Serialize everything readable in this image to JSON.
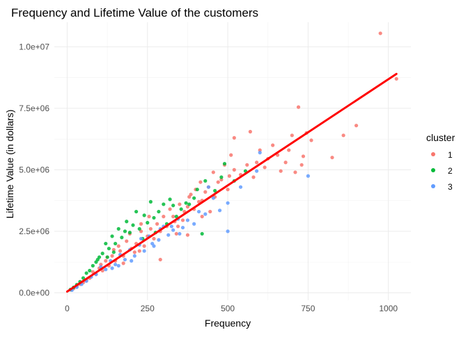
{
  "chart_data": {
    "type": "scatter",
    "title": "Frequency and Lifetime Value of the customers",
    "xlabel": "Frequency",
    "ylabel": "Lifetime Value (in dollars)",
    "xlim": [
      -40,
      1070
    ],
    "ylim": [
      -300000,
      11000000
    ],
    "x_ticks": [
      0,
      250,
      500,
      750,
      1000
    ],
    "x_tick_labels": [
      "0",
      "250",
      "500",
      "750",
      "1000"
    ],
    "y_ticks": [
      0,
      2500000,
      5000000,
      7500000,
      10000000
    ],
    "y_tick_labels": [
      "0.0e+00",
      "2.5e+06",
      "5.0e+06",
      "7.5e+06",
      "1.0e+07"
    ],
    "grid": true,
    "legend": {
      "title": "cluster",
      "placement": "right"
    },
    "colors": {
      "1": "#F8766D",
      "2": "#00BA38",
      "3": "#619CFF",
      "fit_line": "#FF0000"
    },
    "series": [
      {
        "name": "1",
        "color": "#F8766D",
        "points": [
          [
            975,
            10550000
          ],
          [
            1025,
            8700000
          ],
          [
            900,
            6800000
          ],
          [
            860,
            6400000
          ],
          [
            825,
            5500000
          ],
          [
            720,
            7550000
          ],
          [
            745,
            6500000
          ],
          [
            700,
            6400000
          ],
          [
            760,
            6200000
          ],
          [
            690,
            5800000
          ],
          [
            640,
            6000000
          ],
          [
            655,
            5600000
          ],
          [
            625,
            5450000
          ],
          [
            600,
            5800000
          ],
          [
            615,
            5100000
          ],
          [
            680,
            5300000
          ],
          [
            730,
            5200000
          ],
          [
            710,
            4900000
          ],
          [
            665,
            4950000
          ],
          [
            735,
            5550000
          ],
          [
            570,
            6550000
          ],
          [
            590,
            5300000
          ],
          [
            520,
            6300000
          ],
          [
            510,
            5600000
          ],
          [
            560,
            5200000
          ],
          [
            580,
            4700000
          ],
          [
            540,
            4800000
          ],
          [
            490,
            5200000
          ],
          [
            470,
            4500000
          ],
          [
            500,
            4200000
          ],
          [
            455,
            4900000
          ],
          [
            430,
            4100000
          ],
          [
            410,
            3700000
          ],
          [
            380,
            3900000
          ],
          [
            365,
            3300000
          ],
          [
            350,
            3600000
          ],
          [
            335,
            2900000
          ],
          [
            320,
            3400000
          ],
          [
            300,
            3100000
          ],
          [
            290,
            2500000
          ],
          [
            280,
            2800000
          ],
          [
            270,
            2200000
          ],
          [
            260,
            2600000
          ],
          [
            250,
            2300000
          ],
          [
            240,
            1900000
          ],
          [
            230,
            2500000
          ],
          [
            215,
            2000000
          ],
          [
            200,
            1800000
          ],
          [
            185,
            2100000
          ],
          [
            175,
            1500000
          ],
          [
            165,
            1700000
          ],
          [
            150,
            1300000
          ],
          [
            140,
            1500000
          ],
          [
            130,
            1100000
          ],
          [
            120,
            1300000
          ],
          [
            110,
            900000
          ],
          [
            100,
            1000000
          ],
          [
            90,
            750000
          ],
          [
            80,
            850000
          ],
          [
            70,
            600000
          ],
          [
            60,
            500000
          ],
          [
            50,
            420000
          ],
          [
            40,
            350000
          ],
          [
            30,
            260000
          ],
          [
            20,
            180000
          ],
          [
            12,
            120000
          ],
          [
            310,
            2700000
          ],
          [
            330,
            3100000
          ],
          [
            345,
            2700000
          ],
          [
            360,
            2950000
          ],
          [
            375,
            3500000
          ],
          [
            395,
            3400000
          ],
          [
            420,
            3750000
          ],
          [
            440,
            4300000
          ],
          [
            460,
            3900000
          ],
          [
            480,
            4600000
          ],
          [
            290,
            1350000
          ],
          [
            340,
            2400000
          ],
          [
            375,
            2350000
          ],
          [
            420,
            3100000
          ],
          [
            445,
            3300000
          ],
          [
            230,
            2800000
          ],
          [
            255,
            3100000
          ],
          [
            195,
            2400000
          ],
          [
            160,
            1900000
          ],
          [
            145,
            1750000
          ],
          [
            210,
            1650000
          ],
          [
            225,
            1700000
          ],
          [
            175,
            1200000
          ],
          [
            125,
            1450000
          ],
          [
            105,
            1150000
          ],
          [
            400,
            4200000
          ],
          [
            415,
            4500000
          ],
          [
            385,
            4000000
          ],
          [
            520,
            5000000
          ],
          [
            505,
            4750000
          ]
        ]
      },
      {
        "name": "2",
        "color": "#00BA38",
        "points": [
          [
            490,
            5250000
          ],
          [
            555,
            4950000
          ],
          [
            520,
            4550000
          ],
          [
            480,
            4700000
          ],
          [
            460,
            4150000
          ],
          [
            430,
            4550000
          ],
          [
            405,
            4200000
          ],
          [
            395,
            3850000
          ],
          [
            370,
            3650000
          ],
          [
            355,
            3400000
          ],
          [
            340,
            3100000
          ],
          [
            320,
            3800000
          ],
          [
            300,
            3600000
          ],
          [
            285,
            3300000
          ],
          [
            270,
            3050000
          ],
          [
            260,
            3700000
          ],
          [
            250,
            2850000
          ],
          [
            240,
            3150000
          ],
          [
            225,
            2600000
          ],
          [
            215,
            3300000
          ],
          [
            205,
            2750000
          ],
          [
            195,
            2450000
          ],
          [
            185,
            2900000
          ],
          [
            170,
            2250000
          ],
          [
            160,
            2600000
          ],
          [
            150,
            2000000
          ],
          [
            140,
            2300000
          ],
          [
            130,
            1800000
          ],
          [
            120,
            2000000
          ],
          [
            110,
            1600000
          ],
          [
            100,
            1450000
          ],
          [
            90,
            1250000
          ],
          [
            80,
            1100000
          ],
          [
            70,
            900000
          ],
          [
            60,
            800000
          ],
          [
            50,
            600000
          ],
          [
            40,
            450000
          ],
          [
            30,
            330000
          ],
          [
            20,
            220000
          ],
          [
            10,
            130000
          ],
          [
            420,
            2400000
          ],
          [
            380,
            3600000
          ],
          [
            330,
            3550000
          ],
          [
            310,
            2800000
          ],
          [
            275,
            2450000
          ],
          [
            235,
            2200000
          ],
          [
            180,
            2500000
          ],
          [
            145,
            1650000
          ],
          [
            125,
            1450000
          ],
          [
            95,
            1350000
          ]
        ]
      },
      {
        "name": "3",
        "color": "#619CFF",
        "points": [
          [
            750,
            4750000
          ],
          [
            590,
            4950000
          ],
          [
            500,
            2500000
          ],
          [
            540,
            4300000
          ],
          [
            475,
            3350000
          ],
          [
            500,
            3650000
          ],
          [
            455,
            3850000
          ],
          [
            430,
            3200000
          ],
          [
            410,
            3300000
          ],
          [
            395,
            2800000
          ],
          [
            375,
            2950000
          ],
          [
            360,
            2650000
          ],
          [
            345,
            3000000
          ],
          [
            330,
            2550000
          ],
          [
            315,
            2350000
          ],
          [
            300,
            2700000
          ],
          [
            285,
            2150000
          ],
          [
            270,
            1900000
          ],
          [
            255,
            2300000
          ],
          [
            240,
            1700000
          ],
          [
            225,
            1950000
          ],
          [
            210,
            1500000
          ],
          [
            195,
            1750000
          ],
          [
            180,
            1350000
          ],
          [
            165,
            1550000
          ],
          [
            150,
            1150000
          ],
          [
            135,
            1300000
          ],
          [
            120,
            950000
          ],
          [
            105,
            1050000
          ],
          [
            90,
            750000
          ],
          [
            75,
            650000
          ],
          [
            60,
            480000
          ],
          [
            45,
            350000
          ],
          [
            30,
            230000
          ],
          [
            15,
            110000
          ],
          [
            600,
            5700000
          ],
          [
            440,
            4300000
          ],
          [
            265,
            2000000
          ],
          [
            230,
            2200000
          ],
          [
            200,
            1300000
          ],
          [
            350,
            2400000
          ],
          [
            325,
            2700000
          ],
          [
            290,
            2600000
          ],
          [
            160,
            1100000
          ],
          [
            140,
            1000000
          ]
        ]
      }
    ],
    "fit_line": {
      "x": [
        0,
        1025
      ],
      "y": [
        50000,
        8900000
      ]
    }
  }
}
